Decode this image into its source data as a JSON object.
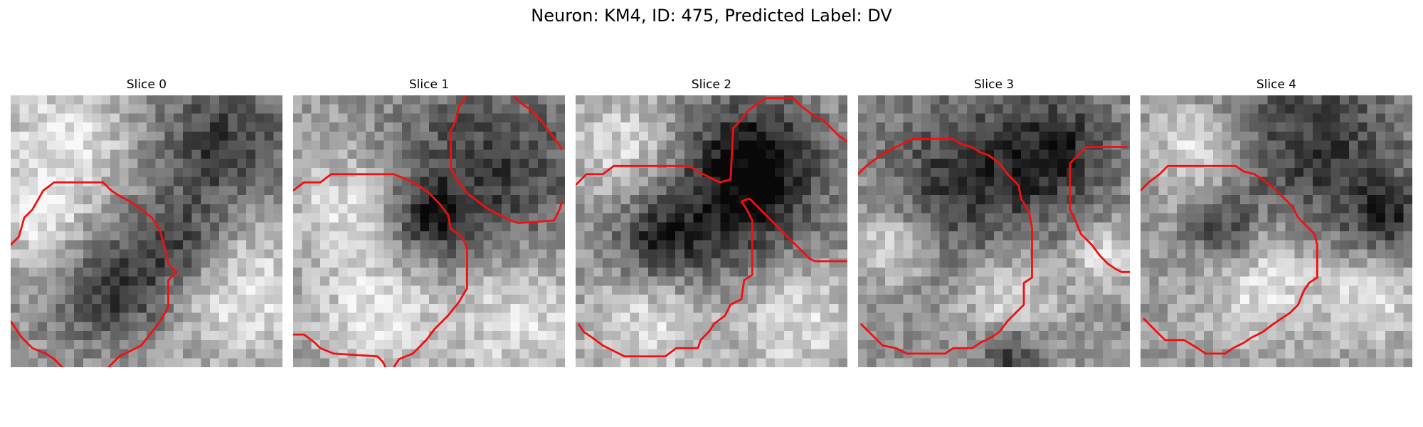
{
  "figure": {
    "title": "Neuron: KM4, ID: 475, Predicted Label: DV",
    "contour_color": "#ee1111"
  },
  "panels": [
    {
      "title": "Slice 0",
      "image_description": "noisy grayscale microscopy patch, dark blob in upper-right, mid-gray cell lower-left, light band lower-right",
      "dark_regions": [
        [
          0.78,
          0.18,
          0.22
        ],
        [
          0.38,
          0.72,
          0.18
        ],
        [
          0.62,
          0.55,
          0.16
        ]
      ],
      "light_regions": [
        [
          0.85,
          0.72,
          0.25
        ],
        [
          0.2,
          0.15,
          0.22
        ],
        [
          0.1,
          0.45,
          0.15
        ]
      ],
      "contours": [
        [
          [
            0.0,
            0.55
          ],
          [
            0.03,
            0.52
          ],
          [
            0.05,
            0.45
          ],
          [
            0.08,
            0.42
          ],
          [
            0.12,
            0.35
          ],
          [
            0.16,
            0.32
          ],
          [
            0.34,
            0.32
          ],
          [
            0.37,
            0.35
          ],
          [
            0.4,
            0.37
          ],
          [
            0.44,
            0.39
          ],
          [
            0.48,
            0.42
          ],
          [
            0.52,
            0.45
          ],
          [
            0.55,
            0.5
          ],
          [
            0.57,
            0.57
          ],
          [
            0.58,
            0.62
          ],
          [
            0.61,
            0.65
          ],
          [
            0.58,
            0.68
          ],
          [
            0.58,
            0.78
          ],
          [
            0.55,
            0.83
          ],
          [
            0.52,
            0.87
          ],
          [
            0.48,
            0.92
          ],
          [
            0.44,
            0.94
          ],
          [
            0.4,
            0.96
          ],
          [
            0.36,
            1.0
          ]
        ],
        [
          [
            0.0,
            0.83
          ],
          [
            0.02,
            0.86
          ],
          [
            0.04,
            0.89
          ],
          [
            0.08,
            0.93
          ],
          [
            0.13,
            0.95
          ],
          [
            0.16,
            0.97
          ],
          [
            0.19,
            1.0
          ]
        ]
      ]
    },
    {
      "title": "Slice 1",
      "image_description": "dark textured blob upper-right, light region bottom-right and left",
      "dark_regions": [
        [
          0.72,
          0.3,
          0.32
        ],
        [
          0.5,
          0.45,
          0.12
        ]
      ],
      "light_regions": [
        [
          0.2,
          0.42,
          0.2
        ],
        [
          0.82,
          0.8,
          0.25
        ],
        [
          0.3,
          0.82,
          0.2
        ]
      ],
      "contours": [
        [
          [
            0.0,
            0.35
          ],
          [
            0.04,
            0.32
          ],
          [
            0.1,
            0.32
          ],
          [
            0.14,
            0.29
          ],
          [
            0.37,
            0.29
          ],
          [
            0.42,
            0.31
          ],
          [
            0.46,
            0.33
          ],
          [
            0.5,
            0.36
          ],
          [
            0.54,
            0.4
          ],
          [
            0.57,
            0.44
          ],
          [
            0.58,
            0.49
          ],
          [
            0.62,
            0.52
          ],
          [
            0.64,
            0.56
          ],
          [
            0.64,
            0.71
          ],
          [
            0.61,
            0.76
          ],
          [
            0.57,
            0.81
          ],
          [
            0.52,
            0.86
          ],
          [
            0.49,
            0.9
          ],
          [
            0.44,
            0.95
          ],
          [
            0.39,
            0.97
          ],
          [
            0.37,
            1.0
          ]
        ],
        [
          [
            0.64,
            0.0
          ],
          [
            0.61,
            0.04
          ],
          [
            0.6,
            0.09
          ],
          [
            0.58,
            0.13
          ],
          [
            0.58,
            0.27
          ],
          [
            0.61,
            0.32
          ],
          [
            0.64,
            0.36
          ],
          [
            0.68,
            0.39
          ],
          [
            0.72,
            0.42
          ],
          [
            0.76,
            0.44
          ],
          [
            0.8,
            0.46
          ],
          [
            0.83,
            0.47
          ],
          [
            0.96,
            0.46
          ],
          [
            0.98,
            0.42
          ],
          [
            0.99,
            0.39
          ]
        ],
        [
          [
            0.81,
            0.0
          ],
          [
            0.84,
            0.03
          ],
          [
            0.87,
            0.05
          ],
          [
            0.91,
            0.09
          ],
          [
            0.94,
            0.13
          ],
          [
            0.97,
            0.17
          ],
          [
            0.99,
            0.2
          ]
        ],
        [
          [
            0.0,
            0.88
          ],
          [
            0.04,
            0.88
          ],
          [
            0.08,
            0.91
          ],
          [
            0.1,
            0.93
          ],
          [
            0.15,
            0.95
          ],
          [
            0.31,
            0.96
          ],
          [
            0.33,
            0.98
          ],
          [
            0.34,
            1.0
          ]
        ]
      ]
    },
    {
      "title": "Slice 2",
      "image_description": "dark center band, light blob bottom-left and lower-right",
      "dark_regions": [
        [
          0.55,
          0.38,
          0.3
        ],
        [
          0.3,
          0.55,
          0.15
        ],
        [
          0.68,
          0.25,
          0.2
        ]
      ],
      "light_regions": [
        [
          0.28,
          0.82,
          0.22
        ],
        [
          0.82,
          0.82,
          0.2
        ],
        [
          0.2,
          0.2,
          0.2
        ]
      ],
      "contours": [
        [
          [
            0.0,
            0.33
          ],
          [
            0.04,
            0.29
          ],
          [
            0.1,
            0.29
          ],
          [
            0.14,
            0.26
          ],
          [
            0.42,
            0.26
          ],
          [
            0.45,
            0.28
          ],
          [
            0.49,
            0.3
          ],
          [
            0.53,
            0.32
          ],
          [
            0.57,
            0.31
          ],
          [
            0.58,
            0.12
          ],
          [
            0.61,
            0.09
          ],
          [
            0.63,
            0.06
          ],
          [
            0.67,
            0.03
          ],
          [
            0.7,
            0.01
          ],
          [
            0.8,
            0.01
          ],
          [
            0.83,
            0.04
          ],
          [
            0.87,
            0.07
          ],
          [
            0.91,
            0.09
          ],
          [
            0.94,
            0.12
          ],
          [
            0.97,
            0.15
          ],
          [
            1.0,
            0.17
          ]
        ],
        [
          [
            0.61,
            0.39
          ],
          [
            0.63,
            0.42
          ],
          [
            0.65,
            0.46
          ],
          [
            0.65,
            0.66
          ],
          [
            0.62,
            0.68
          ],
          [
            0.61,
            0.75
          ],
          [
            0.57,
            0.77
          ],
          [
            0.55,
            0.81
          ],
          [
            0.51,
            0.84
          ],
          [
            0.49,
            0.87
          ],
          [
            0.46,
            0.9
          ],
          [
            0.45,
            0.93
          ],
          [
            0.37,
            0.93
          ],
          [
            0.33,
            0.96
          ],
          [
            0.18,
            0.96
          ],
          [
            0.14,
            0.94
          ],
          [
            0.1,
            0.92
          ],
          [
            0.06,
            0.89
          ],
          [
            0.03,
            0.87
          ],
          [
            0.01,
            0.84
          ]
        ],
        [
          [
            0.61,
            0.39
          ],
          [
            0.64,
            0.38
          ],
          [
            0.68,
            0.42
          ],
          [
            0.71,
            0.45
          ],
          [
            0.75,
            0.49
          ],
          [
            0.79,
            0.53
          ],
          [
            0.83,
            0.57
          ],
          [
            0.86,
            0.6
          ],
          [
            0.88,
            0.61
          ],
          [
            1.0,
            0.61
          ]
        ]
      ]
    },
    {
      "title": "Slice 3",
      "image_description": "dark circular region upper center, light region lower middle",
      "dark_regions": [
        [
          0.4,
          0.3,
          0.28
        ],
        [
          0.75,
          0.2,
          0.2
        ],
        [
          0.55,
          0.95,
          0.1
        ]
      ],
      "light_regions": [
        [
          0.55,
          0.75,
          0.15
        ],
        [
          0.12,
          0.55,
          0.12
        ],
        [
          0.9,
          0.6,
          0.1
        ]
      ],
      "contours": [
        [
          [
            0.0,
            0.29
          ],
          [
            0.03,
            0.26
          ],
          [
            0.07,
            0.23
          ],
          [
            0.1,
            0.21
          ],
          [
            0.14,
            0.19
          ],
          [
            0.18,
            0.17
          ],
          [
            0.2,
            0.16
          ],
          [
            0.35,
            0.16
          ],
          [
            0.38,
            0.18
          ],
          [
            0.42,
            0.19
          ],
          [
            0.45,
            0.21
          ],
          [
            0.48,
            0.22
          ],
          [
            0.52,
            0.25
          ],
          [
            0.55,
            0.29
          ],
          [
            0.59,
            0.33
          ],
          [
            0.6,
            0.38
          ],
          [
            0.63,
            0.43
          ],
          [
            0.64,
            0.49
          ],
          [
            0.64,
            0.67
          ],
          [
            0.61,
            0.69
          ],
          [
            0.61,
            0.77
          ],
          [
            0.58,
            0.8
          ],
          [
            0.55,
            0.83
          ],
          [
            0.52,
            0.87
          ],
          [
            0.49,
            0.89
          ],
          [
            0.45,
            0.91
          ],
          [
            0.42,
            0.93
          ],
          [
            0.35,
            0.93
          ],
          [
            0.32,
            0.95
          ],
          [
            0.18,
            0.95
          ],
          [
            0.14,
            0.93
          ],
          [
            0.09,
            0.92
          ],
          [
            0.07,
            0.9
          ],
          [
            0.04,
            0.87
          ],
          [
            0.01,
            0.84
          ]
        ],
        [
          [
            0.99,
            0.19
          ],
          [
            0.84,
            0.19
          ],
          [
            0.81,
            0.22
          ],
          [
            0.78,
            0.25
          ],
          [
            0.78,
            0.42
          ],
          [
            0.8,
            0.46
          ],
          [
            0.82,
            0.51
          ],
          [
            0.86,
            0.55
          ],
          [
            0.89,
            0.59
          ],
          [
            0.92,
            0.62
          ],
          [
            0.95,
            0.64
          ],
          [
            0.97,
            0.65
          ],
          [
            1.0,
            0.65
          ]
        ]
      ]
    },
    {
      "title": "Slice 4",
      "image_description": "dark upper area, light lower center, cell outline lower-left",
      "dark_regions": [
        [
          0.65,
          0.2,
          0.3
        ],
        [
          0.3,
          0.5,
          0.12
        ],
        [
          0.9,
          0.45,
          0.12
        ]
      ],
      "light_regions": [
        [
          0.45,
          0.68,
          0.22
        ],
        [
          0.2,
          0.2,
          0.15
        ],
        [
          0.85,
          0.75,
          0.15
        ]
      ],
      "contours": [
        [
          [
            0.0,
            0.35
          ],
          [
            0.03,
            0.32
          ],
          [
            0.07,
            0.29
          ],
          [
            0.1,
            0.26
          ],
          [
            0.18,
            0.26
          ],
          [
            0.35,
            0.26
          ],
          [
            0.38,
            0.28
          ],
          [
            0.42,
            0.29
          ],
          [
            0.45,
            0.31
          ],
          [
            0.49,
            0.34
          ],
          [
            0.52,
            0.37
          ],
          [
            0.56,
            0.41
          ],
          [
            0.58,
            0.45
          ],
          [
            0.61,
            0.48
          ],
          [
            0.64,
            0.51
          ],
          [
            0.65,
            0.55
          ],
          [
            0.65,
            0.67
          ],
          [
            0.62,
            0.69
          ],
          [
            0.6,
            0.72
          ],
          [
            0.58,
            0.77
          ],
          [
            0.55,
            0.8
          ],
          [
            0.52,
            0.82
          ],
          [
            0.49,
            0.84
          ],
          [
            0.45,
            0.87
          ],
          [
            0.41,
            0.89
          ],
          [
            0.38,
            0.91
          ],
          [
            0.34,
            0.93
          ],
          [
            0.31,
            0.95
          ],
          [
            0.24,
            0.95
          ],
          [
            0.21,
            0.93
          ],
          [
            0.16,
            0.9
          ],
          [
            0.09,
            0.9
          ],
          [
            0.05,
            0.86
          ],
          [
            0.03,
            0.84
          ],
          [
            0.01,
            0.82
          ]
        ]
      ]
    }
  ]
}
